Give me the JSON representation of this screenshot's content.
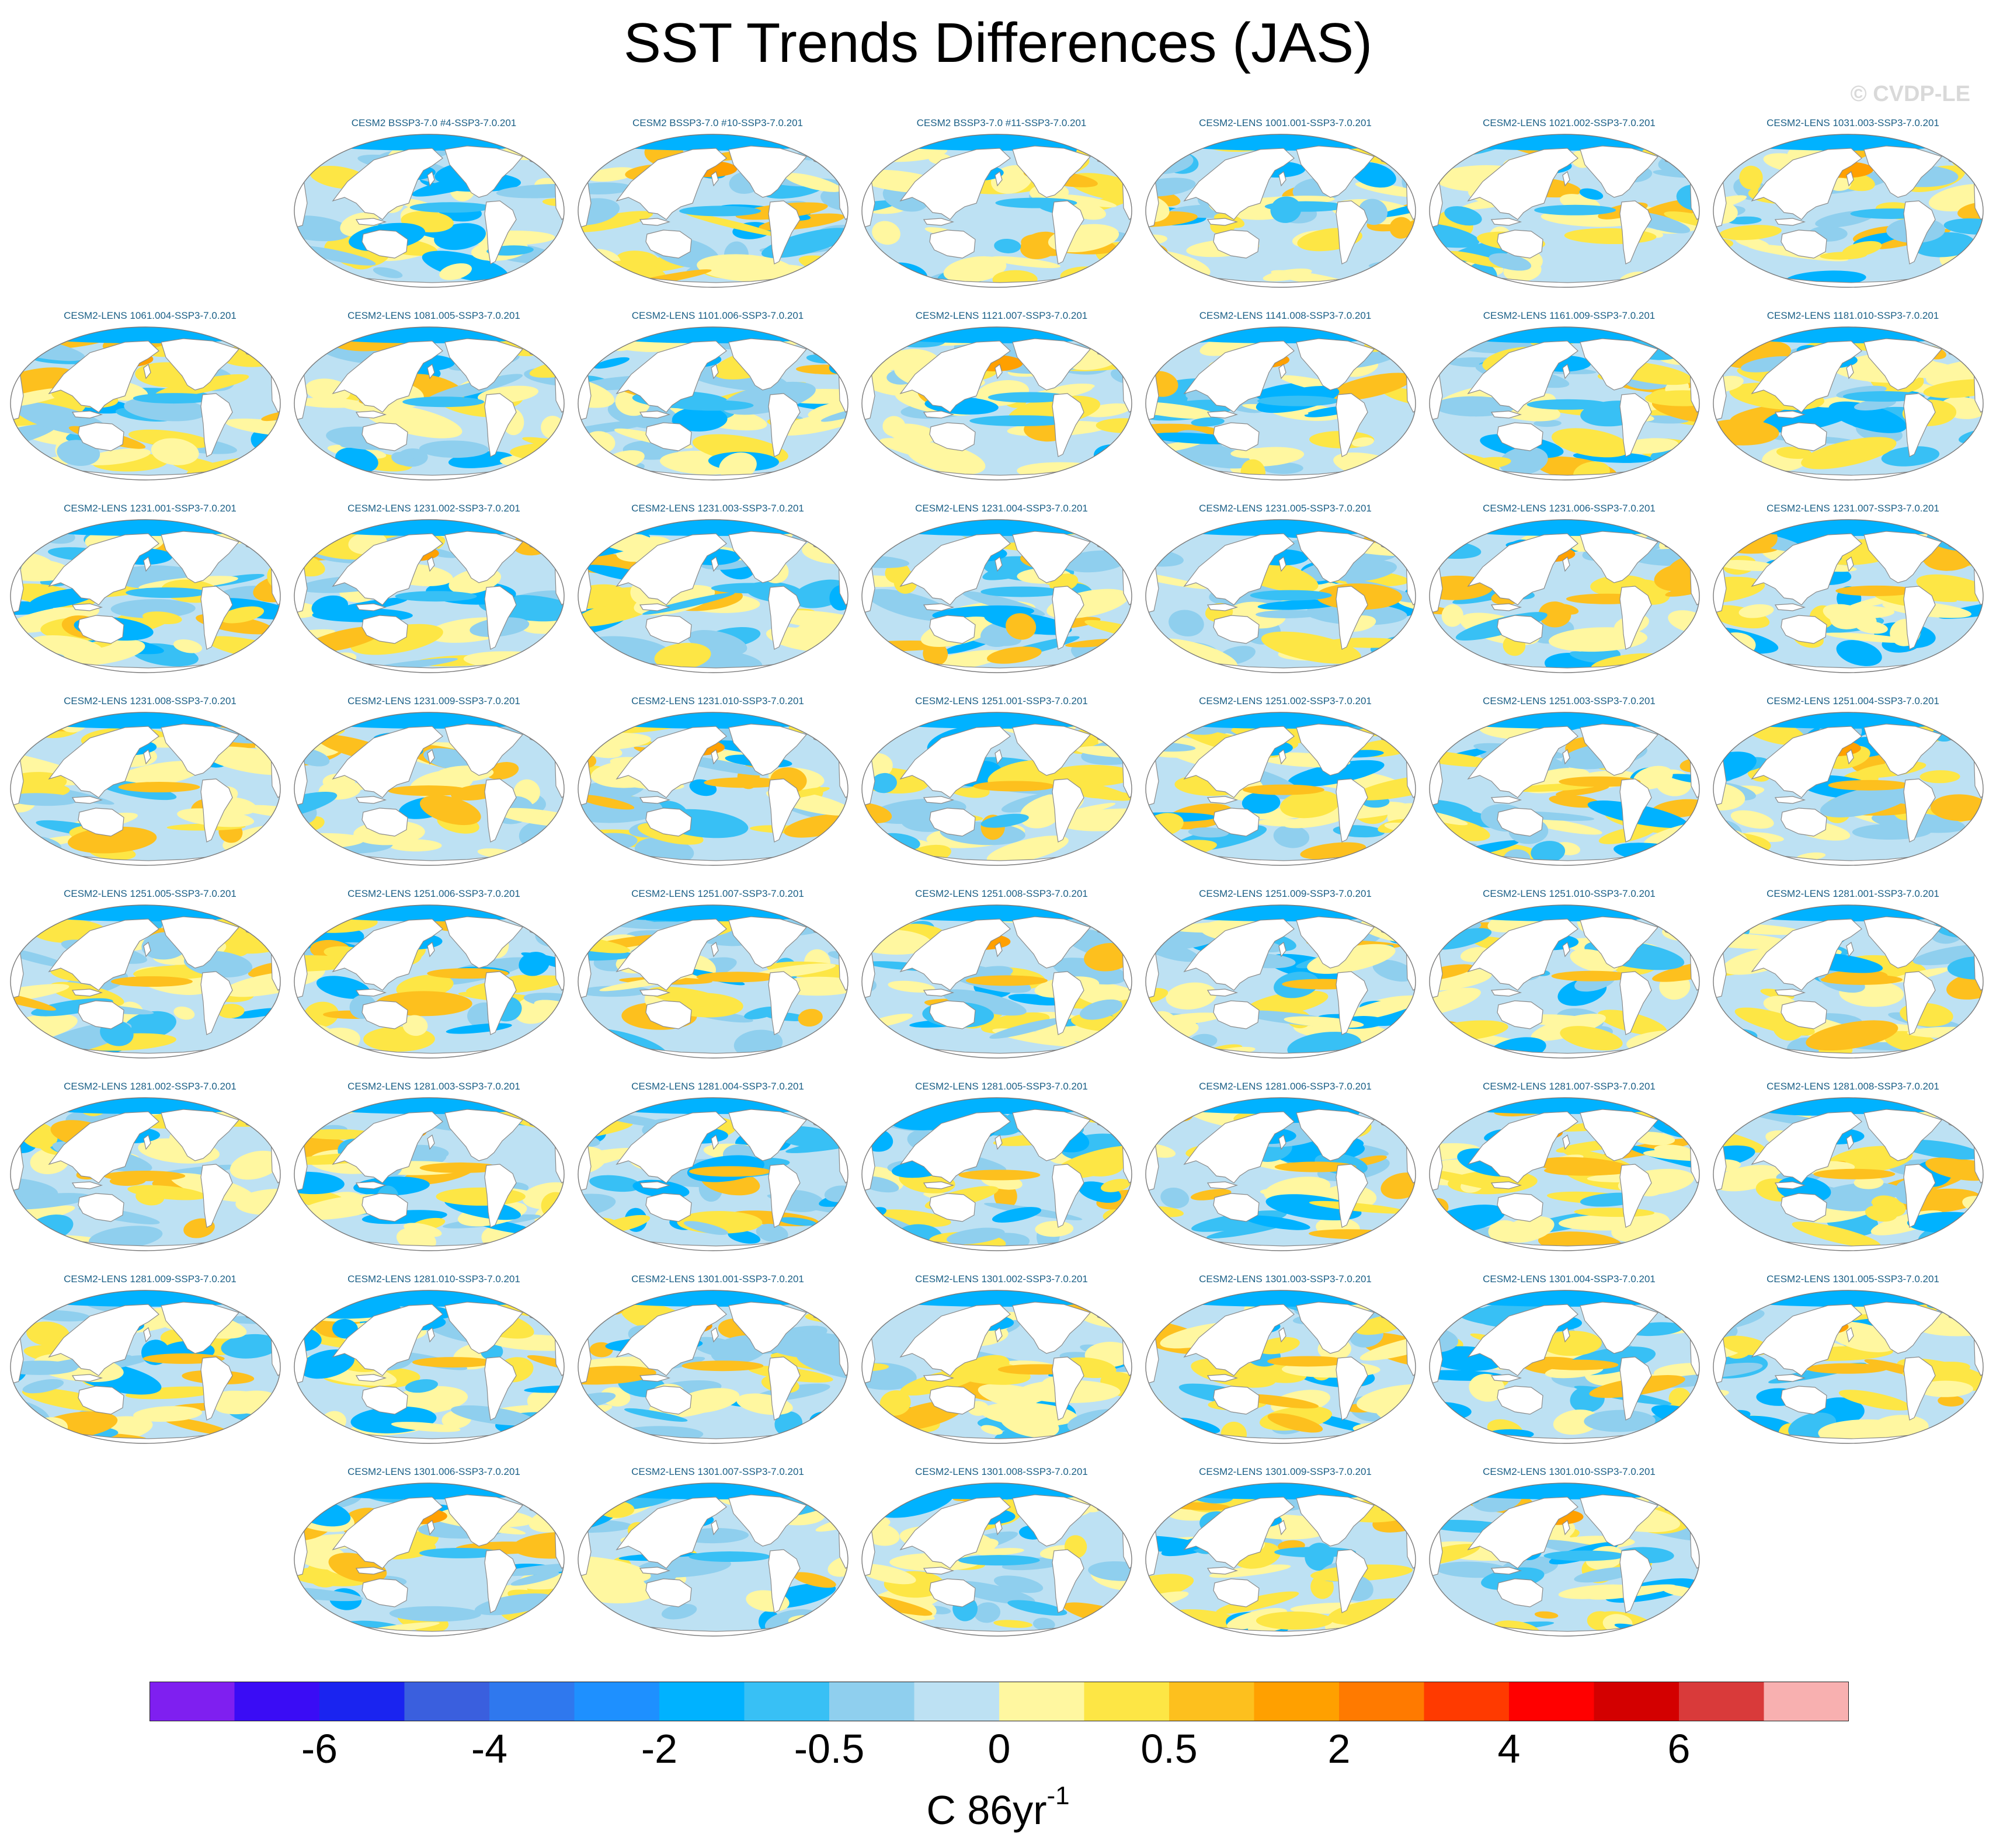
{
  "title": "SST Trends Differences (JAS)",
  "watermark": "© CVDP-LE",
  "panels": [
    "CESM2 BSSP3-7.0 #4-SSP3-7.0.201",
    "CESM2 BSSP3-7.0 #10-SSP3-7.0.201",
    "CESM2 BSSP3-7.0 #11-SSP3-7.0.201",
    "CESM2-LENS 1001.001-SSP3-7.0.201",
    "CESM2-LENS 1021.002-SSP3-7.0.201",
    "CESM2-LENS 1031.003-SSP3-7.0.201",
    "CESM2-LENS 1061.004-SSP3-7.0.201",
    "CESM2-LENS 1081.005-SSP3-7.0.201",
    "CESM2-LENS 1101.006-SSP3-7.0.201",
    "CESM2-LENS 1121.007-SSP3-7.0.201",
    "CESM2-LENS 1141.008-SSP3-7.0.201",
    "CESM2-LENS 1161.009-SSP3-7.0.201",
    "CESM2-LENS 1181.010-SSP3-7.0.201",
    "CESM2-LENS 1231.001-SSP3-7.0.201",
    "CESM2-LENS 1231.002-SSP3-7.0.201",
    "CESM2-LENS 1231.003-SSP3-7.0.201",
    "CESM2-LENS 1231.004-SSP3-7.0.201",
    "CESM2-LENS 1231.005-SSP3-7.0.201",
    "CESM2-LENS 1231.006-SSP3-7.0.201",
    "CESM2-LENS 1231.007-SSP3-7.0.201",
    "CESM2-LENS 1231.008-SSP3-7.0.201",
    "CESM2-LENS 1231.009-SSP3-7.0.201",
    "CESM2-LENS 1231.010-SSP3-7.0.201",
    "CESM2-LENS 1251.001-SSP3-7.0.201",
    "CESM2-LENS 1251.002-SSP3-7.0.201",
    "CESM2-LENS 1251.003-SSP3-7.0.201",
    "CESM2-LENS 1251.004-SSP3-7.0.201",
    "CESM2-LENS 1251.005-SSP3-7.0.201",
    "CESM2-LENS 1251.006-SSP3-7.0.201",
    "CESM2-LENS 1251.007-SSP3-7.0.201",
    "CESM2-LENS 1251.008-SSP3-7.0.201",
    "CESM2-LENS 1251.009-SSP3-7.0.201",
    "CESM2-LENS 1251.010-SSP3-7.0.201",
    "CESM2-LENS 1281.001-SSP3-7.0.201",
    "CESM2-LENS 1281.002-SSP3-7.0.201",
    "CESM2-LENS 1281.003-SSP3-7.0.201",
    "CESM2-LENS 1281.004-SSP3-7.0.201",
    "CESM2-LENS 1281.005-SSP3-7.0.201",
    "CESM2-LENS 1281.006-SSP3-7.0.201",
    "CESM2-LENS 1281.007-SSP3-7.0.201",
    "CESM2-LENS 1281.008-SSP3-7.0.201",
    "CESM2-LENS 1281.009-SSP3-7.0.201",
    "CESM2-LENS 1281.010-SSP3-7.0.201",
    "CESM2-LENS 1301.001-SSP3-7.0.201",
    "CESM2-LENS 1301.002-SSP3-7.0.201",
    "CESM2-LENS 1301.003-SSP3-7.0.201",
    "CESM2-LENS 1301.004-SSP3-7.0.201",
    "CESM2-LENS 1301.005-SSP3-7.0.201",
    "CESM2-LENS 1301.006-SSP3-7.0.201",
    "CESM2-LENS 1301.007-SSP3-7.0.201",
    "CESM2-LENS 1301.008-SSP3-7.0.201",
    "CESM2-LENS 1301.009-SSP3-7.0.201",
    "CESM2-LENS 1301.010-SSP3-7.0.201"
  ],
  "chart_data": {
    "type": "heatmap",
    "title": "SST Trends Differences (JAS)",
    "variable": "SST trend difference",
    "season": "JAS",
    "projection": "global map",
    "panel_count": 53,
    "colorbar": {
      "units": "C 86yr",
      "units_superscript": "-1",
      "tick_labels": [
        "-6",
        "-4",
        "-2",
        "-0.5",
        "0",
        "0.5",
        "2",
        "4",
        "6"
      ],
      "tick_values": [
        -6,
        -4,
        -2,
        -0.5,
        0,
        0.5,
        2,
        4,
        6
      ],
      "tick_boundary_index": [
        2,
        4,
        6,
        8,
        10,
        12,
        14,
        16,
        18
      ],
      "colors": [
        "#7f1ff0",
        "#3a0cf5",
        "#1a24f0",
        "#3a5fde",
        "#2f78ee",
        "#1e90ff",
        "#00b2ff",
        "#38c0f5",
        "#8fcfee",
        "#bde1f3",
        "#fff7a0",
        "#fde645",
        "#fdc01e",
        "#ffa000",
        "#ff7a00",
        "#ff3a00",
        "#ff0000",
        "#d30000",
        "#d93a3a",
        "#f8b0b0"
      ]
    }
  }
}
